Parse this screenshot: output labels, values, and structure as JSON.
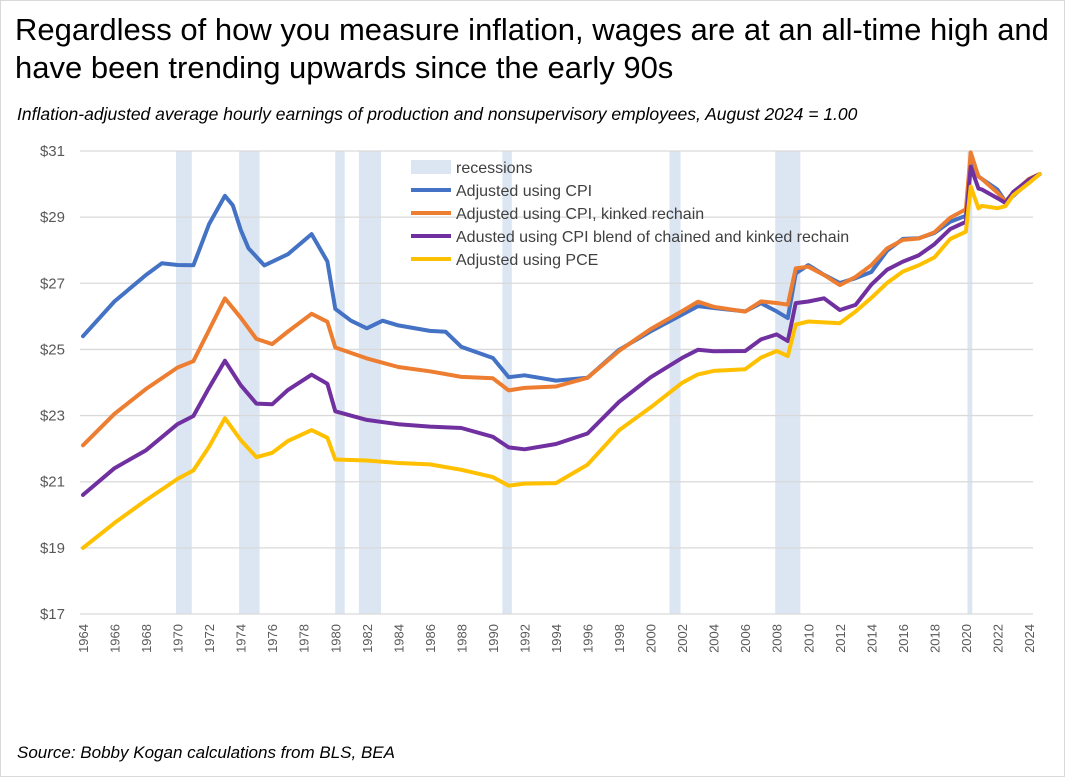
{
  "title": "Regardless of how you measure inflation, wages are at an all-time high and have been trending upwards since the early 90s",
  "subtitle": "Inflation-adjusted average hourly earnings of production and nonsupervisory employees, August 2024 = 1.00",
  "source": "Source: Bobby Kogan calculations from BLS, BEA",
  "chart_data": {
    "type": "line",
    "ylim": [
      17,
      31
    ],
    "xlim": [
      1964,
      2024.67
    ],
    "yticks": [
      {
        "v": 17,
        "label": "$17"
      },
      {
        "v": 19,
        "label": "$19"
      },
      {
        "v": 21,
        "label": "$21"
      },
      {
        "v": 23,
        "label": "$23"
      },
      {
        "v": 25,
        "label": "$25"
      },
      {
        "v": 27,
        "label": "$27"
      },
      {
        "v": 29,
        "label": "$29"
      },
      {
        "v": 31,
        "label": "$31"
      }
    ],
    "xticks": [
      "1964",
      "1966",
      "1968",
      "1970",
      "1972",
      "1974",
      "1976",
      "1978",
      "1980",
      "1982",
      "1984",
      "1986",
      "1988",
      "1990",
      "1992",
      "1994",
      "1996",
      "1998",
      "2000",
      "2002",
      "2004",
      "2006",
      "2008",
      "2010",
      "2012",
      "2014",
      "2016",
      "2018",
      "2020",
      "2022",
      "2024"
    ],
    "grid": true,
    "legend_position": "top-center",
    "recessions_label": "recessions",
    "recession_color": "#dce6f2",
    "recessions": [
      [
        1969.9,
        1970.9
      ],
      [
        1973.9,
        1975.2
      ],
      [
        1980.0,
        1980.6
      ],
      [
        1981.5,
        1982.9
      ],
      [
        1990.6,
        1991.2
      ],
      [
        2001.2,
        2001.9
      ],
      [
        2007.9,
        2009.5
      ],
      [
        2020.1,
        2020.4
      ]
    ],
    "series": [
      {
        "name": "Adjusted using CPI",
        "color": "#4472c4",
        "x": [
          1964,
          1966,
          1968,
          1969,
          1970,
          1971,
          1972,
          1973,
          1973.5,
          1974,
          1974.5,
          1975.5,
          1977,
          1978.5,
          1979.5,
          1980,
          1981,
          1982,
          1983,
          1984,
          1986,
          1987,
          1988,
          1990,
          1991,
          1992,
          1994,
          1996,
          1998,
          2000,
          2002,
          2003,
          2004,
          2006,
          2007,
          2008,
          2008.7,
          2009.2,
          2010,
          2011,
          2012,
          2013,
          2014,
          2015,
          2016,
          2017,
          2018,
          2019,
          2020,
          2020.3,
          2020.8,
          2021,
          2022,
          2022.5,
          2023,
          2024,
          2024.67
        ],
        "y": [
          25.4,
          26.4,
          27.2,
          27.6,
          27.6,
          27.6,
          28.8,
          29.6,
          29.3,
          28.6,
          28.1,
          27.6,
          27.9,
          28.45,
          27.6,
          26.2,
          25.9,
          25.7,
          25.9,
          25.7,
          25.5,
          25.5,
          25.1,
          24.8,
          24.2,
          24.2,
          24.0,
          24.1,
          25.0,
          25.6,
          26.1,
          26.3,
          26.2,
          26.1,
          26.4,
          26.2,
          26.0,
          27.3,
          27.5,
          27.2,
          27.0,
          27.2,
          27.4,
          28.0,
          28.3,
          28.3,
          28.5,
          28.9,
          29.1,
          30.8,
          30.2,
          30.1,
          29.8,
          29.5,
          29.7,
          30.1,
          30.3
        ]
      },
      {
        "name": "Adjusted using CPI, kinked rechain",
        "color": "#ed7d31",
        "x": [
          1964,
          1966,
          1968,
          1970,
          1971,
          1972,
          1973,
          1974,
          1975,
          1976,
          1977,
          1978.5,
          1979.5,
          1980,
          1982,
          1984,
          1986,
          1988,
          1990,
          1991,
          1992,
          1994,
          1996,
          1998,
          2000,
          2002,
          2003,
          2004,
          2006,
          2007,
          2008,
          2008.7,
          2009.2,
          2010,
          2011,
          2012,
          2013,
          2014,
          2015,
          2016,
          2017,
          2018,
          2019,
          2020,
          2020.3,
          2020.8,
          2021,
          2022,
          2022.5,
          2023,
          2024,
          2024.67
        ],
        "y": [
          22.1,
          23.0,
          23.8,
          24.5,
          24.7,
          25.6,
          26.5,
          25.9,
          25.3,
          25.2,
          25.6,
          26.1,
          25.8,
          25.0,
          24.7,
          24.5,
          24.4,
          24.2,
          24.1,
          23.7,
          23.8,
          23.9,
          24.2,
          25.0,
          25.6,
          26.1,
          26.4,
          26.3,
          26.2,
          26.5,
          26.4,
          26.3,
          27.4,
          27.5,
          27.3,
          27.0,
          27.2,
          27.5,
          28.0,
          28.3,
          28.4,
          28.6,
          29.0,
          29.2,
          30.9,
          30.2,
          30.2,
          29.8,
          29.5,
          29.7,
          30.1,
          30.3
        ]
      },
      {
        "name": "Adusted using CPI blend of chained and kinked rechain",
        "color": "#7030a0",
        "x": [
          1964,
          1966,
          1968,
          1970,
          1971,
          1972,
          1973,
          1974,
          1975,
          1976,
          1977,
          1978.5,
          1979.5,
          1980,
          1982,
          1984,
          1986,
          1988,
          1990,
          1991,
          1992,
          1994,
          1996,
          1998,
          2000,
          2002,
          2003,
          2004,
          2006,
          2007,
          2008,
          2008.7,
          2009.2,
          2010,
          2011,
          2012,
          2013,
          2014,
          2015,
          2016,
          2017,
          2018,
          2019,
          2020,
          2020.3,
          2020.8,
          2021,
          2022,
          2022.5,
          2023,
          2024,
          2024.67
        ],
        "y": [
          20.6,
          21.4,
          22.0,
          22.8,
          23.0,
          23.8,
          24.6,
          23.9,
          23.4,
          23.4,
          23.8,
          24.2,
          23.9,
          23.1,
          22.9,
          22.8,
          22.7,
          22.6,
          22.3,
          22.0,
          22.0,
          22.2,
          22.5,
          23.4,
          24.1,
          24.7,
          25.0,
          25.0,
          25.0,
          25.3,
          25.4,
          25.2,
          26.4,
          26.5,
          26.6,
          26.2,
          26.3,
          26.9,
          27.4,
          27.7,
          27.9,
          28.2,
          28.6,
          28.8,
          30.5,
          29.9,
          29.9,
          29.6,
          29.4,
          29.7,
          30.1,
          30.3
        ]
      },
      {
        "name": "Adjusted using PCE",
        "color": "#ffc000",
        "x": [
          1964,
          1966,
          1968,
          1970,
          1971,
          1972,
          1973,
          1974,
          1975,
          1976,
          1977,
          1978.5,
          1979.5,
          1980,
          1982,
          1984,
          1986,
          1988,
          1990,
          1991,
          1992,
          1994,
          1996,
          1998,
          2000,
          2002,
          2003,
          2004,
          2006,
          2007,
          2008,
          2008.7,
          2009.2,
          2010,
          2012,
          2013,
          2014,
          2015,
          2016,
          2017,
          2018,
          2019,
          2020,
          2020.3,
          2020.8,
          2021,
          2022,
          2022.5,
          2023,
          2024,
          2024.67
        ],
        "y": [
          19.0,
          19.8,
          20.5,
          21.1,
          21.3,
          22.0,
          22.9,
          22.3,
          21.8,
          21.9,
          22.2,
          22.5,
          22.3,
          21.7,
          21.7,
          21.6,
          21.5,
          21.3,
          21.1,
          20.9,
          21.0,
          21.0,
          21.5,
          22.5,
          23.2,
          24.0,
          24.3,
          24.4,
          24.4,
          24.7,
          24.9,
          24.8,
          25.8,
          25.9,
          25.8,
          26.1,
          26.5,
          27.0,
          27.4,
          27.6,
          27.8,
          28.3,
          28.5,
          29.9,
          29.3,
          29.4,
          29.3,
          29.3,
          29.6,
          30.0,
          30.3
        ]
      }
    ]
  }
}
